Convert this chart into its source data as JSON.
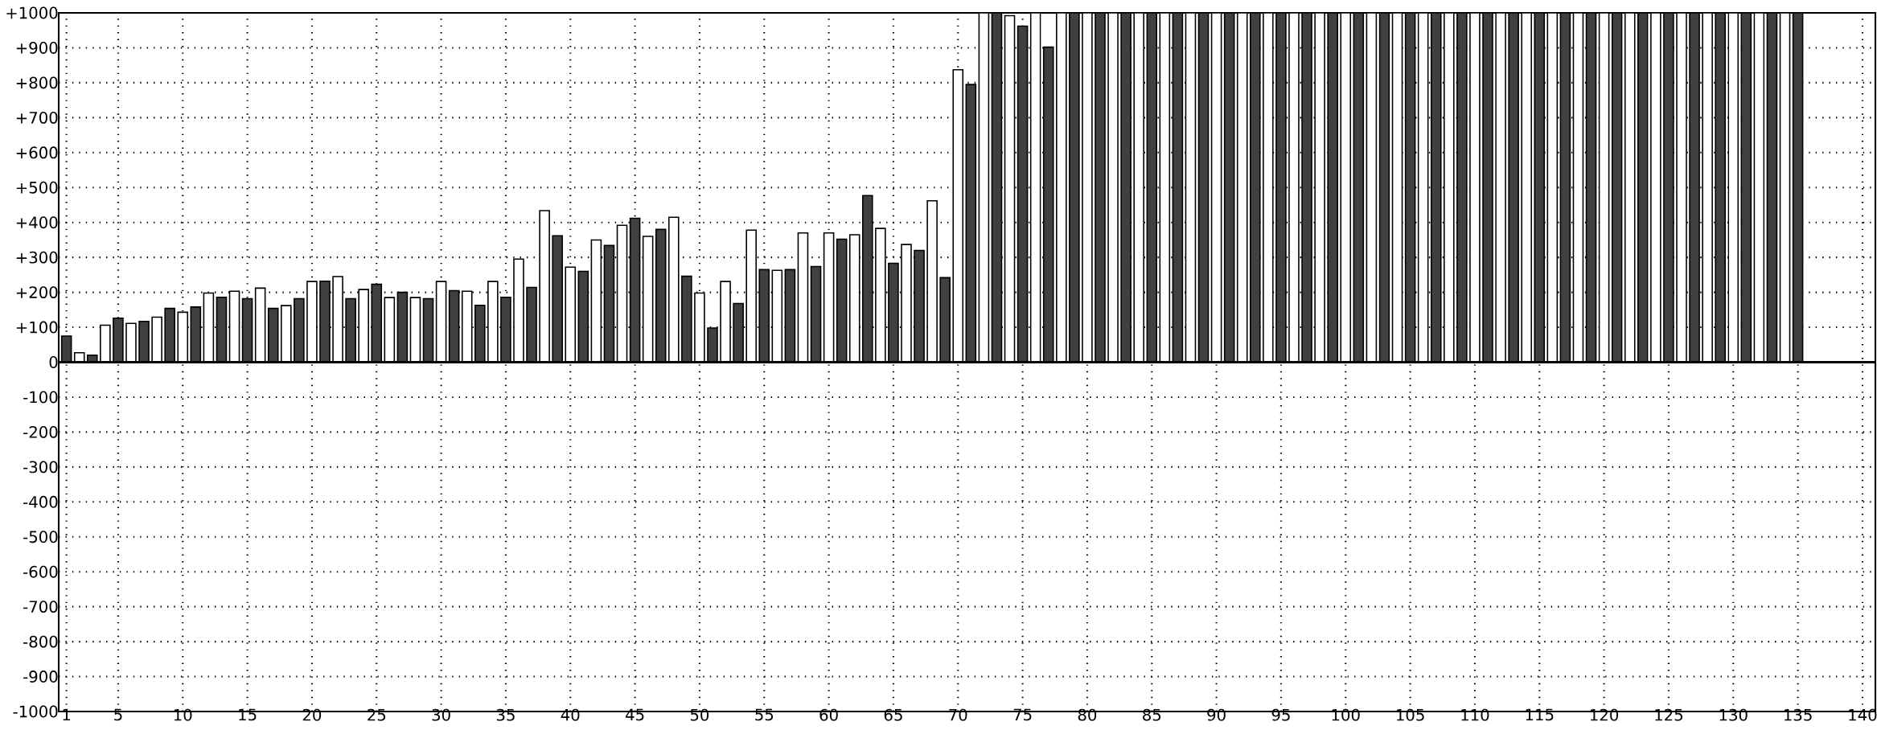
{
  "chart_data": {
    "type": "bar",
    "x": [
      1,
      2,
      3,
      4,
      5,
      6,
      7,
      8,
      9,
      10,
      11,
      12,
      13,
      14,
      15,
      16,
      17,
      18,
      19,
      20,
      21,
      22,
      23,
      24,
      25,
      26,
      27,
      28,
      29,
      30,
      31,
      32,
      33,
      34,
      35,
      36,
      37,
      38,
      39,
      40,
      41,
      42,
      43,
      44,
      45,
      46,
      47,
      48,
      49,
      50,
      51,
      52,
      53,
      54,
      55,
      56,
      57,
      58,
      59,
      60,
      61,
      62,
      63,
      64,
      65,
      66,
      67,
      68,
      69,
      70,
      71,
      72,
      73,
      74,
      75,
      76,
      77,
      78,
      79,
      80,
      81,
      82,
      83,
      84,
      85,
      86,
      87,
      88,
      89,
      90,
      91,
      92,
      93,
      94,
      95,
      96,
      97,
      98,
      99,
      100,
      101,
      102,
      103,
      104,
      105,
      106,
      107,
      108,
      109,
      110,
      111,
      112,
      113,
      114,
      115,
      116,
      117,
      118,
      119,
      120,
      121,
      122,
      123,
      124,
      125,
      126,
      127,
      128,
      129,
      130,
      131,
      132,
      133,
      134,
      135
    ],
    "values": [
      75,
      27,
      20,
      106,
      126,
      111,
      117,
      129,
      154,
      143,
      158,
      198,
      186,
      203,
      182,
      212,
      154,
      162,
      182,
      231,
      232,
      245,
      182,
      208,
      223,
      185,
      200,
      185,
      182,
      231,
      205,
      203,
      163,
      231,
      186,
      295,
      214,
      434,
      362,
      272,
      260,
      350,
      334,
      392,
      412,
      360,
      380,
      415,
      246,
      198,
      98,
      231,
      168,
      378,
      265,
      263,
      265,
      370,
      274,
      370,
      352,
      365,
      477,
      383,
      283,
      337,
      320,
      462,
      242,
      837,
      795,
      1000,
      1000,
      992,
      962,
      1000,
      902,
      1000,
      1000,
      1000,
      1000,
      1000,
      1000,
      1000,
      1000,
      1000,
      1000,
      1000,
      1000,
      1000,
      1000,
      1000,
      1000,
      1000,
      1000,
      1000,
      1000,
      1000,
      1000,
      1000,
      1000,
      1000,
      1000,
      1000,
      1000,
      1000,
      1000,
      1000,
      1000,
      1000,
      1000,
      1000,
      1000,
      1000,
      1000,
      1000,
      1000,
      1000,
      1000,
      1000,
      1000,
      1000,
      1000,
      1000,
      1000,
      1000,
      1000,
      1000,
      1000,
      1000,
      1000,
      1000,
      1000,
      1000,
      1000
    ],
    "colors": [
      "#404040",
      "#ffffff",
      "#404040",
      "#ffffff",
      "#404040",
      "#ffffff",
      "#404040",
      "#ffffff",
      "#404040",
      "#ffffff",
      "#404040",
      "#ffffff",
      "#404040",
      "#ffffff",
      "#404040",
      "#ffffff",
      "#404040",
      "#ffffff",
      "#404040",
      "#ffffff",
      "#404040",
      "#ffffff",
      "#404040",
      "#ffffff",
      "#404040",
      "#ffffff",
      "#404040",
      "#ffffff",
      "#404040",
      "#ffffff",
      "#404040",
      "#ffffff",
      "#404040",
      "#ffffff",
      "#404040",
      "#ffffff",
      "#404040",
      "#ffffff",
      "#404040",
      "#ffffff",
      "#404040",
      "#ffffff",
      "#404040",
      "#ffffff",
      "#404040",
      "#ffffff",
      "#404040",
      "#ffffff",
      "#404040",
      "#ffffff",
      "#404040",
      "#ffffff",
      "#404040",
      "#ffffff",
      "#404040",
      "#ffffff",
      "#404040",
      "#ffffff",
      "#404040",
      "#ffffff",
      "#404040",
      "#ffffff",
      "#404040",
      "#ffffff",
      "#404040",
      "#ffffff",
      "#404040",
      "#ffffff",
      "#404040",
      "#ffffff",
      "#404040",
      "#ffffff",
      "#404040",
      "#ffffff",
      "#404040",
      "#ffffff",
      "#404040",
      "#ffffff",
      "#404040",
      "#ffffff",
      "#404040",
      "#ffffff",
      "#404040",
      "#ffffff",
      "#404040",
      "#ffffff",
      "#404040",
      "#ffffff",
      "#404040",
      "#ffffff",
      "#404040",
      "#ffffff",
      "#404040",
      "#ffffff",
      "#404040",
      "#ffffff",
      "#404040",
      "#ffffff",
      "#404040",
      "#ffffff",
      "#404040",
      "#ffffff",
      "#404040",
      "#ffffff",
      "#404040",
      "#ffffff",
      "#404040",
      "#ffffff",
      "#404040",
      "#ffffff",
      "#404040",
      "#ffffff",
      "#404040",
      "#ffffff",
      "#404040",
      "#ffffff",
      "#404040",
      "#ffffff",
      "#404040",
      "#ffffff",
      "#404040",
      "#ffffff",
      "#404040",
      "#ffffff",
      "#404040",
      "#ffffff",
      "#404040",
      "#ffffff",
      "#404040",
      "#ffffff",
      "#404040",
      "#ffffff",
      "#404040",
      "#ffffff",
      "#404040"
    ],
    "xlim": [
      0.4,
      141
    ],
    "xticks": [
      1,
      5,
      10,
      15,
      20,
      25,
      30,
      35,
      40,
      45,
      50,
      55,
      60,
      65,
      70,
      75,
      80,
      85,
      90,
      95,
      100,
      105,
      110,
      115,
      120,
      125,
      130,
      135,
      140
    ],
    "ylim": [
      -1000,
      1000
    ],
    "yticks": [
      {
        "value": -1000,
        "label": "-1000"
      },
      {
        "value": -900,
        "label": "-900"
      },
      {
        "value": -800,
        "label": "-800"
      },
      {
        "value": -700,
        "label": "-700"
      },
      {
        "value": -600,
        "label": "-600"
      },
      {
        "value": -500,
        "label": "-500"
      },
      {
        "value": -400,
        "label": "-400"
      },
      {
        "value": -300,
        "label": "-300"
      },
      {
        "value": -200,
        "label": "-200"
      },
      {
        "value": -100,
        "label": "-100"
      },
      0,
      {
        "value": 100,
        "label": "+100"
      },
      {
        "value": 200,
        "label": "+200"
      },
      {
        "value": 300,
        "label": "+300"
      },
      {
        "value": 400,
        "label": "+400"
      },
      {
        "value": 500,
        "label": "+500"
      },
      {
        "value": 600,
        "label": "+600"
      },
      {
        "value": 700,
        "label": "+700"
      },
      {
        "value": 800,
        "label": "+800"
      },
      {
        "value": 900,
        "label": "+900"
      },
      {
        "value": 1000,
        "label": "+1000"
      }
    ],
    "grid": true,
    "ref_lines": [
      {
        "axis": "y",
        "value": 0
      }
    ]
  }
}
